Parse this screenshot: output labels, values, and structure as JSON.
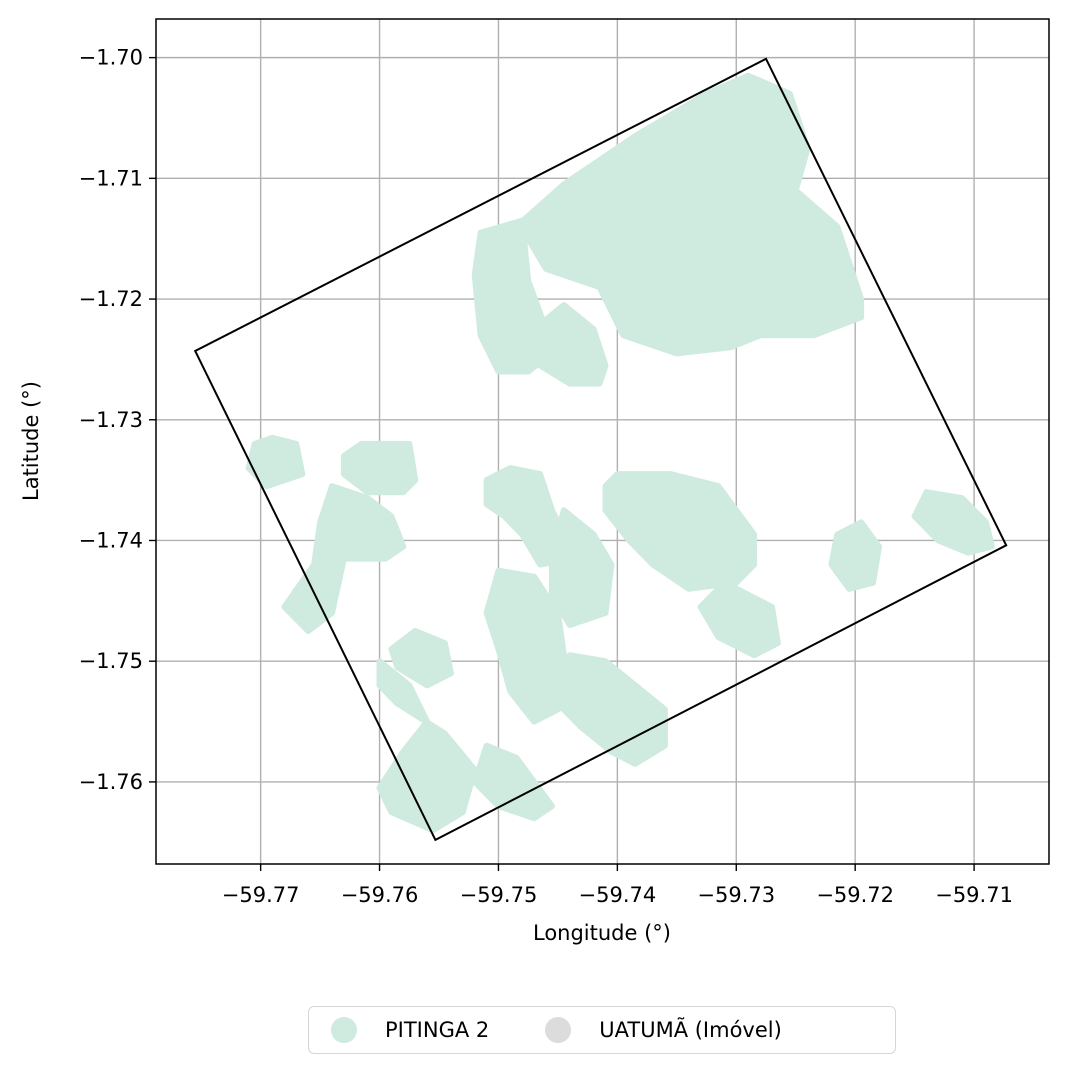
{
  "map": {
    "xlabel": "Longitude (°)",
    "ylabel": "Latitude (°)",
    "grid": true,
    "x_ticks": [
      -59.77,
      -59.76,
      -59.75,
      -59.74,
      -59.73,
      -59.72,
      -59.71
    ],
    "x_tick_labels": [
      "−59.77",
      "−59.76",
      "−59.75",
      "−59.74",
      "−59.73",
      "−59.72",
      "−59.71"
    ],
    "y_ticks": [
      -1.7,
      -1.71,
      -1.72,
      -1.73,
      -1.74,
      -1.75,
      -1.76
    ],
    "y_tick_labels": [
      "−1.70",
      "−1.71",
      "−1.72",
      "−1.73",
      "−1.74",
      "−1.75",
      "−1.76"
    ],
    "xlim": [
      -59.7788,
      -59.7037
    ],
    "ylim": [
      -1.7668,
      -1.6968
    ],
    "boundary_color": "#000000",
    "boundary": [
      [
        -59.7275,
        -1.7001
      ],
      [
        -59.7073,
        -1.7404
      ],
      [
        -59.7553,
        -1.7648
      ],
      [
        -59.7755,
        -1.7243
      ]
    ],
    "layers": [
      {
        "label": "PITINGA 2",
        "color": "#cfeadf",
        "patches": [
          [
            [
              -59.7485,
              -1.714
            ],
            [
              -59.7445,
              -1.7105
            ],
            [
              -59.7385,
              -1.7065
            ],
            [
              -59.7325,
              -1.703
            ],
            [
              -59.729,
              -1.7015
            ],
            [
              -59.7255,
              -1.703
            ],
            [
              -59.724,
              -1.7075
            ],
            [
              -59.725,
              -1.711
            ],
            [
              -59.7215,
              -1.714
            ],
            [
              -59.7195,
              -1.72
            ],
            [
              -59.7195,
              -1.7215
            ],
            [
              -59.7235,
              -1.723
            ],
            [
              -59.728,
              -1.723
            ],
            [
              -59.7305,
              -1.724
            ],
            [
              -59.735,
              -1.7245
            ],
            [
              -59.7395,
              -1.723
            ],
            [
              -59.7415,
              -1.719
            ],
            [
              -59.746,
              -1.7175
            ],
            [
              -59.7475,
              -1.715
            ]
          ],
          [
            [
              -59.7515,
              -1.7145
            ],
            [
              -59.748,
              -1.7135
            ],
            [
              -59.7475,
              -1.7185
            ],
            [
              -59.746,
              -1.7225
            ],
            [
              -59.7455,
              -1.7245
            ],
            [
              -59.7475,
              -1.726
            ],
            [
              -59.75,
              -1.726
            ],
            [
              -59.7515,
              -1.723
            ],
            [
              -59.752,
              -1.718
            ]
          ],
          [
            [
              -59.747,
              -1.7225
            ],
            [
              -59.7445,
              -1.7205
            ],
            [
              -59.742,
              -1.7225
            ],
            [
              -59.741,
              -1.7255
            ],
            [
              -59.7415,
              -1.727
            ],
            [
              -59.744,
              -1.727
            ],
            [
              -59.7465,
              -1.7255
            ]
          ],
          [
            [
              -59.769,
              -1.7315
            ],
            [
              -59.767,
              -1.732
            ],
            [
              -59.7665,
              -1.7345
            ],
            [
              -59.7695,
              -1.7355
            ],
            [
              -59.771,
              -1.734
            ],
            [
              -59.7705,
              -1.732
            ]
          ],
          [
            [
              -59.7615,
              -1.732
            ],
            [
              -59.7575,
              -1.732
            ],
            [
              -59.757,
              -1.735
            ],
            [
              -59.758,
              -1.736
            ],
            [
              -59.761,
              -1.736
            ],
            [
              -59.763,
              -1.7345
            ],
            [
              -59.763,
              -1.733
            ]
          ],
          [
            [
              -59.764,
              -1.7355
            ],
            [
              -59.761,
              -1.7365
            ],
            [
              -59.759,
              -1.738
            ],
            [
              -59.758,
              -1.7405
            ],
            [
              -59.7595,
              -1.7415
            ],
            [
              -59.763,
              -1.7415
            ],
            [
              -59.764,
              -1.746
            ],
            [
              -59.766,
              -1.7475
            ],
            [
              -59.768,
              -1.7455
            ],
            [
              -59.7655,
              -1.742
            ],
            [
              -59.765,
              -1.7385
            ]
          ],
          [
            [
              -59.749,
              -1.734
            ],
            [
              -59.7465,
              -1.7345
            ],
            [
              -59.7455,
              -1.7375
            ],
            [
              -59.7435,
              -1.7415
            ],
            [
              -59.7465,
              -1.742
            ],
            [
              -59.748,
              -1.7395
            ],
            [
              -59.7495,
              -1.738
            ],
            [
              -59.751,
              -1.737
            ],
            [
              -59.751,
              -1.735
            ]
          ],
          [
            [
              -59.74,
              -1.7345
            ],
            [
              -59.7355,
              -1.7345
            ],
            [
              -59.7315,
              -1.7355
            ],
            [
              -59.7285,
              -1.7395
            ],
            [
              -59.7285,
              -1.742
            ],
            [
              -59.73,
              -1.7435
            ],
            [
              -59.734,
              -1.744
            ],
            [
              -59.737,
              -1.742
            ],
            [
              -59.739,
              -1.74
            ],
            [
              -59.741,
              -1.7375
            ],
            [
              -59.741,
              -1.7355
            ]
          ],
          [
            [
              -59.7445,
              -1.7375
            ],
            [
              -59.742,
              -1.7395
            ],
            [
              -59.7405,
              -1.742
            ],
            [
              -59.741,
              -1.746
            ],
            [
              -59.744,
              -1.747
            ],
            [
              -59.7455,
              -1.7445
            ],
            [
              -59.7455,
              -1.741
            ]
          ],
          [
            [
              -59.731,
              -1.7435
            ],
            [
              -59.727,
              -1.7455
            ],
            [
              -59.7265,
              -1.7485
            ],
            [
              -59.7285,
              -1.7495
            ],
            [
              -59.7315,
              -1.748
            ],
            [
              -59.733,
              -1.7455
            ]
          ],
          [
            [
              -59.7195,
              -1.7385
            ],
            [
              -59.718,
              -1.7405
            ],
            [
              -59.7185,
              -1.7435
            ],
            [
              -59.7205,
              -1.744
            ],
            [
              -59.722,
              -1.742
            ],
            [
              -59.7215,
              -1.7395
            ]
          ],
          [
            [
              -59.714,
              -1.736
            ],
            [
              -59.711,
              -1.7365
            ],
            [
              -59.709,
              -1.7385
            ],
            [
              -59.7085,
              -1.7405
            ],
            [
              -59.7105,
              -1.741
            ],
            [
              -59.713,
              -1.74
            ],
            [
              -59.715,
              -1.738
            ]
          ],
          [
            [
              -59.75,
              -1.7425
            ],
            [
              -59.747,
              -1.743
            ],
            [
              -59.745,
              -1.746
            ],
            [
              -59.7445,
              -1.7495
            ],
            [
              -59.745,
              -1.754
            ],
            [
              -59.747,
              -1.755
            ],
            [
              -59.749,
              -1.7525
            ],
            [
              -59.75,
              -1.749
            ],
            [
              -59.751,
              -1.746
            ]
          ],
          [
            [
              -59.757,
              -1.7475
            ],
            [
              -59.7545,
              -1.7485
            ],
            [
              -59.754,
              -1.751
            ],
            [
              -59.756,
              -1.752
            ],
            [
              -59.7585,
              -1.7505
            ],
            [
              -59.759,
              -1.749
            ]
          ],
          [
            [
              -59.76,
              -1.75
            ],
            [
              -59.7575,
              -1.752
            ],
            [
              -59.756,
              -1.755
            ],
            [
              -59.758,
              -1.7575
            ],
            [
              -59.76,
              -1.7605
            ],
            [
              -59.759,
              -1.7625
            ],
            [
              -59.7555,
              -1.764
            ],
            [
              -59.753,
              -1.7625
            ],
            [
              -59.752,
              -1.759
            ],
            [
              -59.7545,
              -1.756
            ],
            [
              -59.7585,
              -1.7535
            ],
            [
              -59.76,
              -1.752
            ]
          ],
          [
            [
              -59.744,
              -1.7495
            ],
            [
              -59.741,
              -1.75
            ],
            [
              -59.7385,
              -1.752
            ],
            [
              -59.736,
              -1.754
            ],
            [
              -59.736,
              -1.757
            ],
            [
              -59.7385,
              -1.7585
            ],
            [
              -59.7405,
              -1.7575
            ],
            [
              -59.743,
              -1.7555
            ],
            [
              -59.745,
              -1.7535
            ],
            [
              -59.745,
              -1.751
            ]
          ],
          [
            [
              -59.751,
              -1.757
            ],
            [
              -59.7485,
              -1.758
            ],
            [
              -59.747,
              -1.76
            ],
            [
              -59.7455,
              -1.762
            ],
            [
              -59.747,
              -1.763
            ],
            [
              -59.75,
              -1.762
            ],
            [
              -59.752,
              -1.76
            ]
          ]
        ]
      },
      {
        "label": "UATUMÃ (Imóvel)",
        "color": "#dcdcdc",
        "patches": []
      }
    ]
  },
  "legend": {
    "items": [
      {
        "label": "PITINGA 2",
        "color": "#cfeadf"
      },
      {
        "label": "UATUMÃ (Imóvel)",
        "color": "#dcdcdc"
      }
    ]
  }
}
